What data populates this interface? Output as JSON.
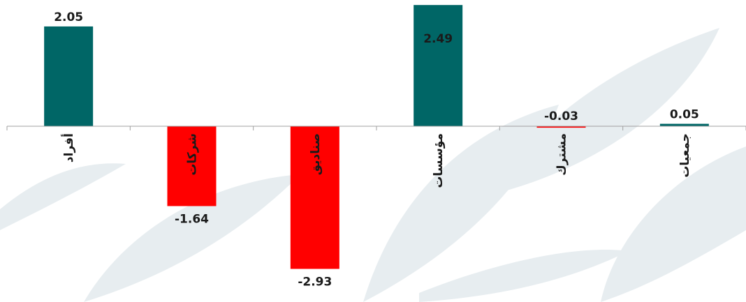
{
  "chart_data": {
    "type": "bar",
    "categories": [
      "أفراد",
      "شركات",
      "صناديق",
      "مؤسسات",
      "مشترك",
      "جمعيات"
    ],
    "values": [
      2.05,
      -1.64,
      -2.93,
      2.49,
      -0.03,
      0.05
    ],
    "value_labels": [
      "2.05",
      "-1.64",
      "-2.93",
      "2.49",
      "-0.03",
      "0.05"
    ],
    "title": "",
    "xlabel": "",
    "ylabel": "",
    "ylim": [
      -3.2,
      2.6
    ],
    "grid": false,
    "legend": "none",
    "colors": {
      "positive": "#006666",
      "negative": "#ff0000",
      "axis": "#999999",
      "watermark": "#e6ecee"
    }
  }
}
